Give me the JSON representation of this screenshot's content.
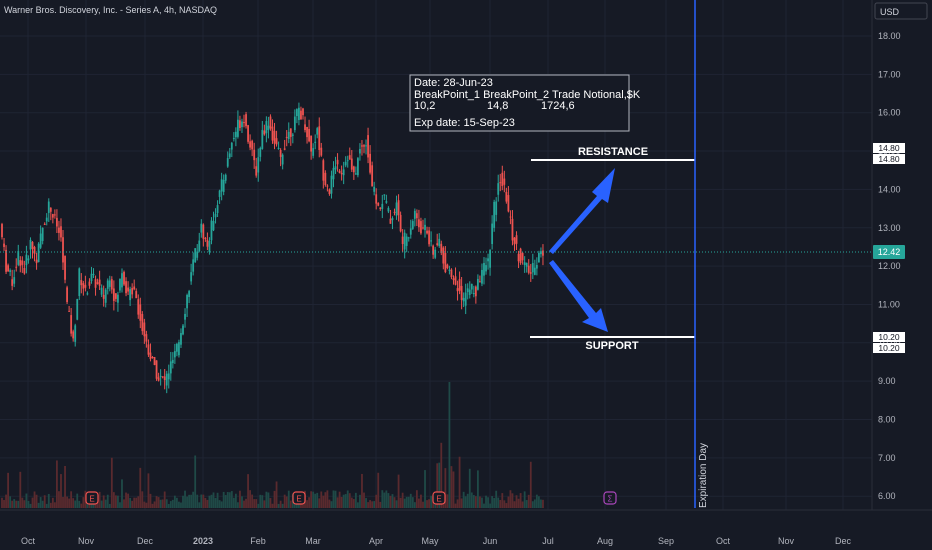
{
  "header": {
    "title": "Warner Bros. Discovery, Inc. - Series A, 4h, NASDAQ"
  },
  "currency": "USD",
  "colors": {
    "bg": "#161a25",
    "up": "#26a69a",
    "down": "#ef5350",
    "accent": "#2962ff",
    "grid": "#1f2433",
    "text": "#b2b5be",
    "annotation": "#ffffff"
  },
  "info_box": {
    "line1": "Date: 28-Jun-23",
    "line2": "BreakPoint_1 BreakPoint_2 Trade Notional,$K",
    "line3_a": "10,2",
    "line3_b": "14,8",
    "line3_c": "1724,6",
    "line4": "Exp date: 15-Sep-23"
  },
  "annotations": {
    "resistance_label": "RESISTANCE",
    "support_label": "SUPPORT",
    "expiration_label": "Expiration Day",
    "earnings_marker": "E",
    "dividend_marker": "Σ"
  },
  "chart_data": {
    "type": "candlestick",
    "title": "Warner Bros. Discovery, Inc. - Series A, 4h, NASDAQ",
    "x_ticks": [
      "Oct",
      "Nov",
      "Dec",
      "2023",
      "Feb",
      "Mar",
      "Apr",
      "May",
      "Jun",
      "Jul",
      "Aug",
      "Sep",
      "Oct",
      "Nov",
      "Dec"
    ],
    "y_ticks": [
      "18.00",
      "17.00",
      "16.00",
      "15.00",
      "14.00",
      "13.00",
      "12.00",
      "11.00",
      "10.00",
      "9.00",
      "8.00",
      "7.00",
      "6.00"
    ],
    "ylim": [
      6,
      18
    ],
    "last_price": "12.42",
    "resistance": {
      "price": "14.80",
      "tags": [
        "14.80",
        "14.80"
      ]
    },
    "support": {
      "price": "10.20",
      "tags": [
        "10.20",
        "10.20"
      ]
    },
    "earnings_dates": [
      "Nov",
      "Feb",
      "May"
    ],
    "dividend_date": "Aug",
    "expiration_date": "Sep",
    "price_path": [
      [
        "Oct",
        13.1
      ],
      [
        "Oct",
        12.0
      ],
      [
        "Oct",
        11.6
      ],
      [
        "Oct",
        12.3
      ],
      [
        "Oct",
        11.9
      ],
      [
        "Oct",
        12.6
      ],
      [
        "Oct",
        12.2
      ],
      [
        "Oct",
        13.0
      ],
      [
        "Oct",
        13.6
      ],
      [
        "Oct",
        13.2
      ],
      [
        "Nov",
        12.7
      ],
      [
        "Nov",
        11.0
      ],
      [
        "Nov",
        10.0
      ],
      [
        "Nov",
        11.8
      ],
      [
        "Nov",
        11.3
      ],
      [
        "Nov",
        11.7
      ],
      [
        "Nov",
        11.5
      ],
      [
        "Nov",
        11.2
      ],
      [
        "Nov",
        11.8
      ],
      [
        "Nov",
        11.0
      ],
      [
        "Dec",
        11.9
      ],
      [
        "Dec",
        11.2
      ],
      [
        "Dec",
        11.5
      ],
      [
        "Dec",
        10.6
      ],
      [
        "Dec",
        10.0
      ],
      [
        "Dec",
        9.5
      ],
      [
        "Dec",
        9.1
      ],
      [
        "Dec",
        9.0
      ],
      [
        "Dec",
        9.4
      ],
      [
        "Dec",
        9.8
      ],
      [
        "2023",
        10.6
      ],
      [
        "2023",
        11.5
      ],
      [
        "2023",
        12.3
      ],
      [
        "2023",
        13.0
      ],
      [
        "2023",
        12.5
      ],
      [
        "2023",
        13.3
      ],
      [
        "2023",
        13.9
      ],
      [
        "2023",
        14.5
      ],
      [
        "2023",
        15.2
      ],
      [
        "2023",
        15.7
      ],
      [
        "Feb",
        15.9
      ],
      [
        "Feb",
        15.1
      ],
      [
        "Feb",
        14.5
      ],
      [
        "Feb",
        15.5
      ],
      [
        "Feb",
        15.8
      ],
      [
        "Feb",
        15.2
      ],
      [
        "Feb",
        14.8
      ],
      [
        "Feb",
        15.4
      ],
      [
        "Feb",
        15.6
      ],
      [
        "Feb",
        16.1
      ],
      [
        "Mar",
        15.7
      ],
      [
        "Mar",
        15.0
      ],
      [
        "Mar",
        15.5
      ],
      [
        "Mar",
        14.4
      ],
      [
        "Mar",
        14.0
      ],
      [
        "Mar",
        14.7
      ],
      [
        "Mar",
        14.5
      ],
      [
        "Mar",
        14.9
      ],
      [
        "Mar",
        14.3
      ],
      [
        "Mar",
        15.0
      ],
      [
        "Apr",
        15.3
      ],
      [
        "Apr",
        14.1
      ],
      [
        "Apr",
        13.5
      ],
      [
        "Apr",
        13.8
      ],
      [
        "Apr",
        13.2
      ],
      [
        "Apr",
        13.6
      ],
      [
        "Apr",
        12.6
      ],
      [
        "Apr",
        12.9
      ],
      [
        "Apr",
        13.4
      ],
      [
        "Apr",
        13.0
      ],
      [
        "May",
        12.9
      ],
      [
        "May",
        12.3
      ],
      [
        "May",
        12.7
      ],
      [
        "May",
        12.0
      ],
      [
        "May",
        11.7
      ],
      [
        "May",
        11.5
      ],
      [
        "May",
        11.1
      ],
      [
        "May",
        11.5
      ],
      [
        "May",
        11.3
      ],
      [
        "May",
        11.9
      ],
      [
        "Jun",
        12.1
      ],
      [
        "Jun",
        13.5
      ],
      [
        "Jun",
        14.3
      ],
      [
        "Jun",
        13.8
      ],
      [
        "Jun",
        12.8
      ],
      [
        "Jun",
        12.3
      ],
      [
        "Jun",
        12.0
      ],
      [
        "Jun",
        11.8
      ],
      [
        "Jun",
        12.2
      ],
      [
        "Jun",
        12.42
      ]
    ]
  }
}
